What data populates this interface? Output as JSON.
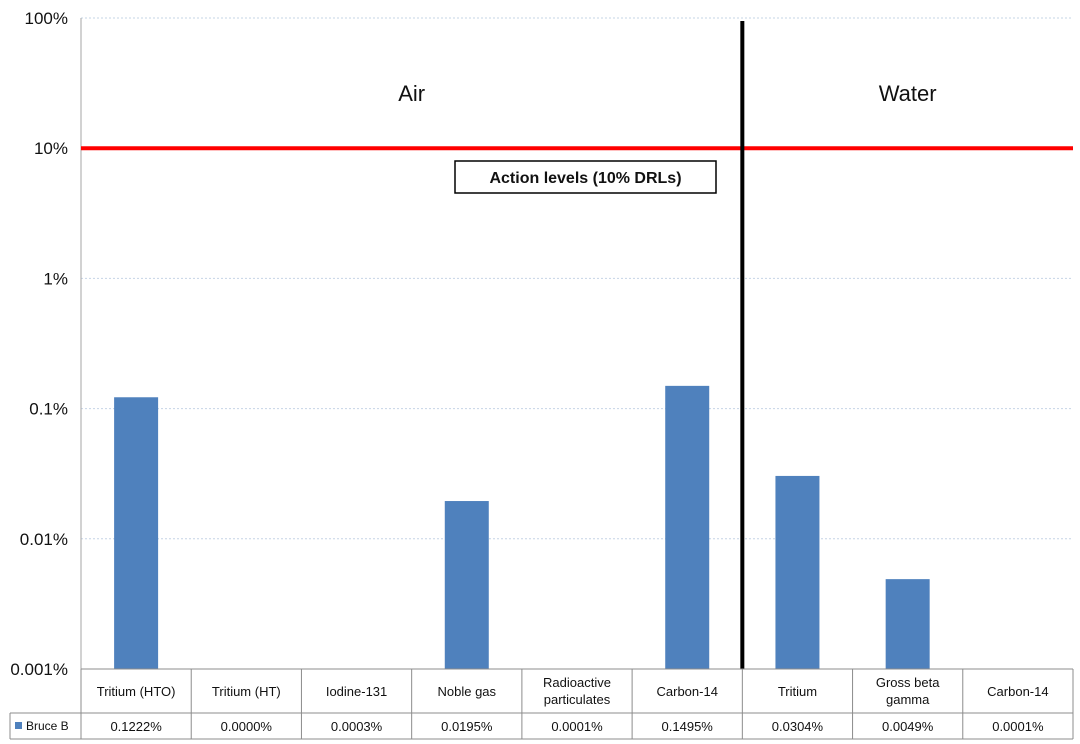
{
  "chart_data": {
    "type": "bar",
    "yscale": "log",
    "ylim": [
      0.001,
      100
    ],
    "yticks": [
      "100%",
      "10%",
      "1%",
      "0.1%",
      "0.01%",
      "0.001%"
    ],
    "ytick_values": [
      100,
      10,
      1,
      0.1,
      0.01,
      0.001
    ],
    "categories": [
      [
        "Tritium (HTO)"
      ],
      [
        "Tritium (HT)"
      ],
      [
        "Iodine-131"
      ],
      [
        "Noble gas"
      ],
      [
        "Radioactive",
        "particulates"
      ],
      [
        "Carbon-14"
      ],
      [
        "Tritium"
      ],
      [
        "Gross beta",
        "gamma"
      ],
      [
        "Carbon-14"
      ]
    ],
    "series": [
      {
        "name": "Bruce B",
        "color": "#4f81bd",
        "values": [
          0.1222,
          0.0,
          0.0003,
          0.0195,
          0.0001,
          0.1495,
          0.0304,
          0.0049,
          0.0001
        ],
        "value_labels": [
          "0.1222%",
          "0.0000%",
          "0.0003%",
          "0.0195%",
          "0.0001%",
          "0.1495%",
          "0.0304%",
          "0.0049%",
          "0.0001%"
        ]
      }
    ],
    "reference_line": {
      "value": 10,
      "color": "#ff0000",
      "label": "Action levels (10% DRLs)"
    },
    "regions": [
      {
        "label": "Air",
        "start_index": 0,
        "end_index": 5
      },
      {
        "label": "Water",
        "start_index": 6,
        "end_index": 8
      }
    ],
    "grid": true,
    "gridline_color": "#c6d4e6",
    "legend": "data-table"
  }
}
